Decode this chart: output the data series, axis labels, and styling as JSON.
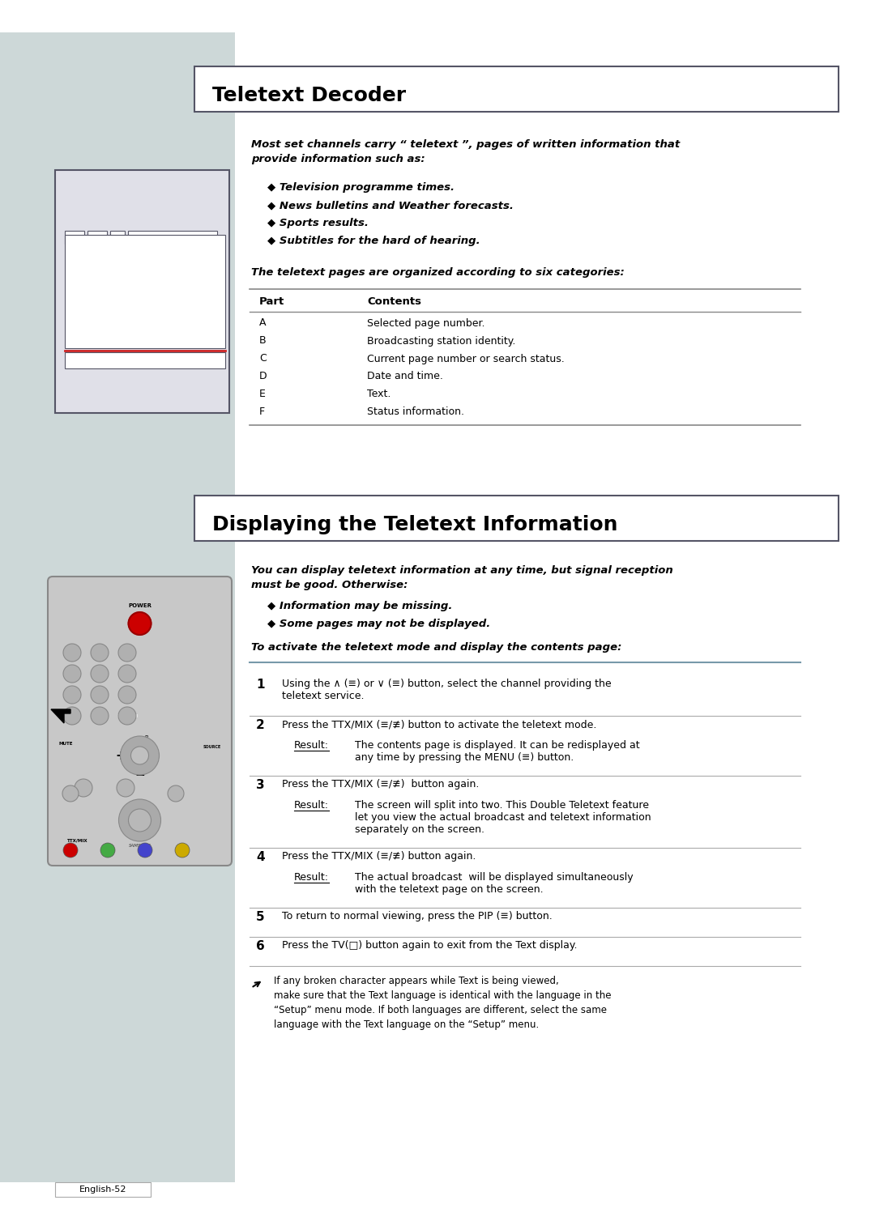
{
  "bg_color": "#ffffff",
  "side_panel_color": "#cdd8d8",
  "title1": "Teletext Decoder",
  "title2": "Displaying the Teletext Information",
  "section1_text_intro": "Most set channels carry “ teletext ”, pages of written information that\nprovide information such as:",
  "section1_bullets": [
    "Television programme times.",
    "News bulletins and Weather forecasts.",
    "Sports results.",
    "Subtitles for the hard of hearing."
  ],
  "section1_table_intro": "The teletext pages are organized according to six categories:",
  "table_headers": [
    "Part",
    "Contents"
  ],
  "table_rows": [
    [
      "A",
      "Selected page number."
    ],
    [
      "B",
      "Broadcasting station identity."
    ],
    [
      "C",
      "Current page number or search status."
    ],
    [
      "D",
      "Date and time."
    ],
    [
      "E",
      "Text."
    ],
    [
      "F",
      "Status information."
    ]
  ],
  "section2_intro": "You can display teletext information at any time, but signal reception\nmust be good. Otherwise:",
  "section2_bullets": [
    "Information may be missing.",
    "Some pages may not be displayed."
  ],
  "section2_subheading": "To activate the teletext mode and display the contents page:",
  "steps": [
    {
      "num": "1",
      "text": "Using the ∧ (≡) or ∨ (≡) button, select the channel providing the\nteletext service."
    },
    {
      "num": "2",
      "text": "Press the TTX/MIX (≡/≢) button to activate the teletext mode.",
      "result": "The contents page is displayed. It can be redisplayed at\nany time by pressing the MENU (≡) button."
    },
    {
      "num": "3",
      "text": "Press the TTX/MIX (≡/≢)  button again.",
      "result": "The screen will split into two. This Double Teletext feature\nlet you view the actual broadcast and teletext information\nseparately on the screen."
    },
    {
      "num": "4",
      "text": "Press the TTX/MIX (≡/≢) button again.",
      "result": "The actual broadcast  will be displayed simultaneously\nwith the teletext page on the screen."
    },
    {
      "num": "5",
      "text": "To return to normal viewing, press the PIP (≡) button."
    },
    {
      "num": "6",
      "text": "Press the TV(□) button again to exit from the Text display."
    }
  ],
  "note_text": "If any broken character appears while Text is being viewed,\nmake sure that the Text language is identical with the language in the\n“Setup” menu mode. If both languages are different, select the same\nlanguage with the Text language on the “Setup” menu.",
  "footer": "English-52"
}
